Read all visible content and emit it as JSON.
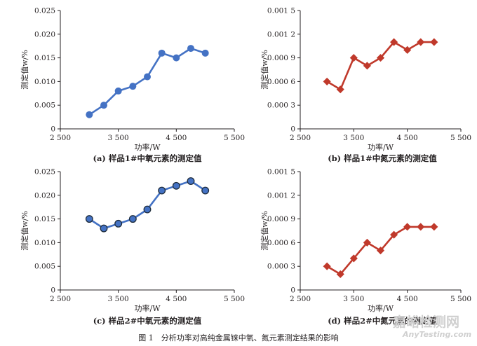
{
  "figure": {
    "caption": "图 1　分析功率对高纯金属铼中氧、氮元素测定结果的影响",
    "watermark": "嘉峪检测网",
    "watermark_sub": "AnyTesting.com"
  },
  "chart_data": [
    {
      "id": "a",
      "type": "line",
      "caption": "(a) 样品1#中氧元素的测定值",
      "xlabel": "功率/W",
      "ylabel": "测定值w/%",
      "xlim": [
        2500,
        5500
      ],
      "ylim": [
        0,
        0.025
      ],
      "xticks": [
        "2 500",
        "3 500",
        "4 500",
        "5 500"
      ],
      "xtick_values": [
        2500,
        3500,
        4500,
        5500
      ],
      "yticks": [
        "0",
        "0.005",
        "0.010",
        "0.015",
        "0.020",
        "0.025"
      ],
      "ytick_values": [
        0,
        0.005,
        0.01,
        0.015,
        0.02,
        0.025
      ],
      "color": "#4472c4",
      "marker": "circle",
      "x": [
        3000,
        3250,
        3500,
        3750,
        4000,
        4250,
        4500,
        4750,
        5000
      ],
      "y": [
        0.003,
        0.005,
        0.008,
        0.009,
        0.011,
        0.016,
        0.015,
        0.017,
        0.016
      ]
    },
    {
      "id": "b",
      "type": "line",
      "caption": "(b) 样品1#中氮元素的测定值",
      "xlabel": "功率/W",
      "ylabel": "测定值w/%",
      "xlim": [
        2500,
        5500
      ],
      "ylim": [
        0,
        0.0015
      ],
      "xticks": [
        "2 500",
        "3 500",
        "4 500",
        "5 500"
      ],
      "xtick_values": [
        2500,
        3500,
        4500,
        5500
      ],
      "yticks": [
        "0",
        "0.000 3",
        "0.000 6",
        "0.000 9",
        "0.001 2",
        "0.001 5"
      ],
      "ytick_values": [
        0,
        0.0003,
        0.0006,
        0.0009,
        0.0012,
        0.0015
      ],
      "color": "#c0392b",
      "marker": "diamond",
      "x": [
        3000,
        3250,
        3500,
        3750,
        4000,
        4250,
        4500,
        4750,
        5000
      ],
      "y": [
        0.0006,
        0.0005,
        0.0009,
        0.0008,
        0.0009,
        0.0011,
        0.001,
        0.0011,
        0.0011
      ]
    },
    {
      "id": "c",
      "type": "line",
      "caption": "(c) 样品2#中氧元素的测定值",
      "xlabel": "功率/W",
      "ylabel": "测定值w/%",
      "xlim": [
        2500,
        5500
      ],
      "ylim": [
        0,
        0.025
      ],
      "xticks": [
        "2 500",
        "3 500",
        "4 500",
        "5 500"
      ],
      "xtick_values": [
        2500,
        3500,
        4500,
        5500
      ],
      "yticks": [
        "0",
        "0.005",
        "0.010",
        "0.015",
        "0.020",
        "0.025"
      ],
      "ytick_values": [
        0,
        0.005,
        0.01,
        0.015,
        0.02,
        0.025
      ],
      "color": "#4472c4",
      "marker": "circle-dark",
      "x": [
        3000,
        3250,
        3500,
        3750,
        4000,
        4250,
        4500,
        4750,
        5000
      ],
      "y": [
        0.015,
        0.013,
        0.014,
        0.015,
        0.017,
        0.021,
        0.022,
        0.023,
        0.021
      ]
    },
    {
      "id": "d",
      "type": "line",
      "caption": "(d) 样品2#中氮元素的测定值",
      "xlabel": "功率/W",
      "ylabel": "测定值w/%",
      "xlim": [
        2500,
        5500
      ],
      "ylim": [
        0,
        0.0015
      ],
      "xticks": [
        "2 500",
        "3 500",
        "4 500",
        "5 500"
      ],
      "xtick_values": [
        2500,
        3500,
        4500,
        5500
      ],
      "yticks": [
        "0",
        "0.000 3",
        "0.000 6",
        "0.000 9",
        "0.001 2",
        "0.001 5"
      ],
      "ytick_values": [
        0,
        0.0003,
        0.0006,
        0.0009,
        0.0012,
        0.0015
      ],
      "color": "#c0392b",
      "marker": "diamond",
      "x": [
        3000,
        3250,
        3500,
        3750,
        4000,
        4250,
        4500,
        4750,
        5000
      ],
      "y": [
        0.0003,
        0.0002,
        0.0004,
        0.0006,
        0.0005,
        0.0007,
        0.0008,
        0.0008,
        0.0008
      ]
    }
  ]
}
